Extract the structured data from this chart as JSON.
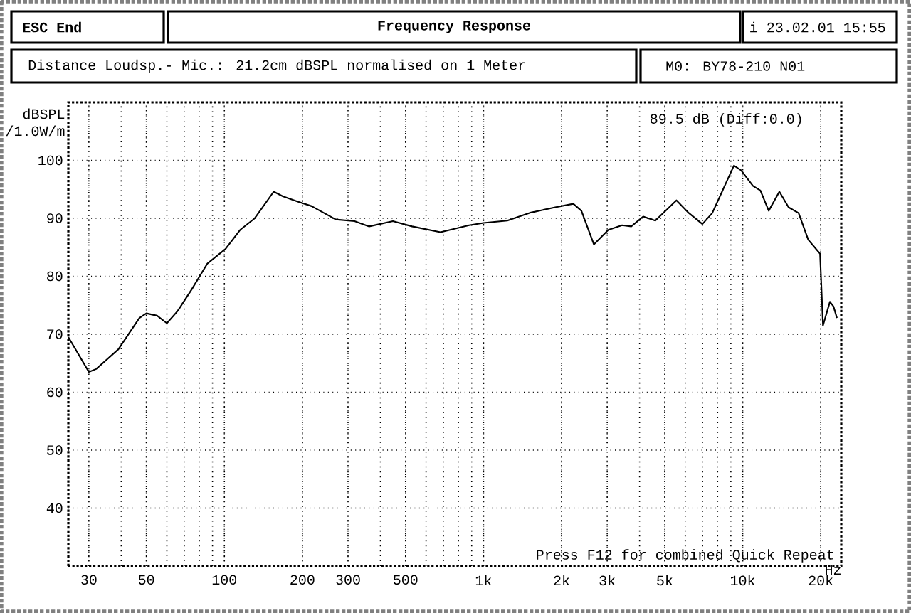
{
  "chart_data": {
    "type": "line",
    "title": "Frequency Response",
    "subtitle": "Distance Loudsp.- Mic.: 21.2cm dBSPL normalised on 1 Meter",
    "ylabel": "dBSPL /1.0W/m",
    "annotations": [
      "ESC End",
      "i 23.02.01 15:55",
      "M0: BY78-210 N01",
      "89.5 dB (Diff:0.0)",
      "Press F12 for combined Quick Repeat"
    ],
    "log": "x",
    "grid": true,
    "marker": "none",
    "line_style": "solid",
    "xlim": [
      25,
      24000
    ],
    "ylim": [
      30,
      110
    ],
    "xticks": [
      30,
      50,
      100,
      200,
      300,
      500,
      {
        "value": 1000,
        "label": "1k"
      },
      {
        "value": 2000,
        "label": "2k"
      },
      {
        "value": 3000,
        "label": "3k"
      },
      {
        "value": 5000,
        "label": "5k"
      },
      {
        "value": 10000,
        "label": "10k"
      },
      {
        "value": 20000,
        "label": "20k"
      }
    ],
    "xlabel": "Hz",
    "yticks": [
      40,
      50,
      60,
      70,
      80,
      90,
      100
    ],
    "series": [
      {
        "color": "#000000",
        "x": [
          25,
          30,
          32,
          39,
          47,
          50,
          55,
          60,
          66,
          75,
          86,
          101,
          115,
          131,
          155,
          168,
          191,
          217,
          269,
          318,
          362,
          447,
          530,
          682,
          880,
          1000,
          1235,
          1525,
          1890,
          2220,
          2385,
          2665,
          3030,
          3425,
          3715,
          4130,
          4600,
          5550,
          6200,
          6990,
          7630,
          9250,
          9850,
          10950,
          11700,
          12600,
          13850,
          15030,
          16430,
          17900,
          19880,
          20400,
          21700,
          22400,
          23100
        ],
        "values": [
          69.5,
          63.5,
          64,
          67.4,
          72.8,
          73.6,
          73.2,
          71.9,
          74,
          77.8,
          82.2,
          84.7,
          88,
          90,
          94.6,
          93.8,
          92.9,
          92.1,
          89.8,
          89.5,
          88.6,
          89.5,
          88.6,
          87.6,
          88.8,
          89.2,
          89.6,
          91,
          91.9,
          92.5,
          91.3,
          85.5,
          88,
          88.8,
          88.6,
          90.3,
          89.6,
          93.1,
          90.9,
          89,
          90.9,
          99.1,
          98.3,
          95.6,
          94.8,
          91.3,
          94.6,
          91.9,
          90.9,
          86.3,
          83.9,
          71.5,
          75.6,
          74.8,
          72.8
        ]
      }
    ]
  }
}
